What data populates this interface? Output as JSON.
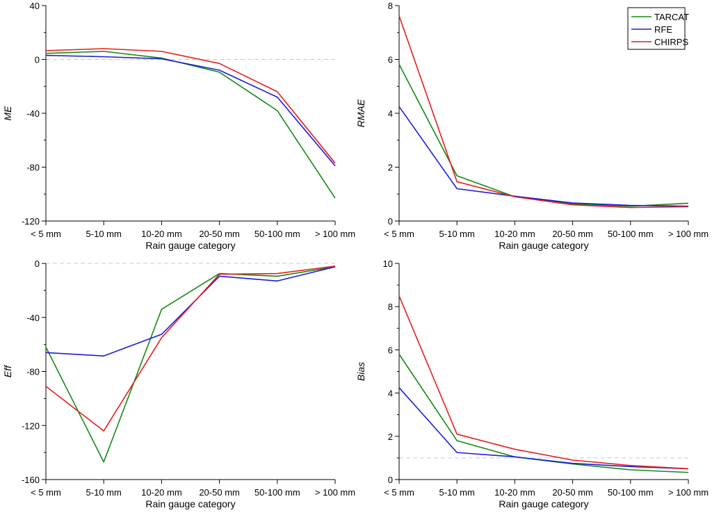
{
  "chart_data": [
    {
      "type": "line",
      "xlabel": "Rain gauge category",
      "ylabel": "ME",
      "categories": [
        "< 5 mm",
        "5-10 mm",
        "10-20 mm",
        "20-50 mm",
        "50-100 mm",
        "> 100 mm"
      ],
      "ylim": [
        -120,
        40
      ],
      "yticks": [
        40,
        0,
        -40,
        -80,
        -120
      ],
      "yticks_display": [
        "40",
        "0",
        "-40",
        "-80",
        "-120"
      ],
      "reference_line": 0,
      "series": [
        {
          "name": "TARCAT",
          "color": "#138a13",
          "values": [
            4.5,
            6,
            1,
            -9.5,
            -38,
            -103
          ]
        },
        {
          "name": "RFE",
          "color": "#1b1bde",
          "values": [
            3,
            2,
            0.5,
            -8,
            -28,
            -79
          ]
        },
        {
          "name": "CHIRPS",
          "color": "#e81c1c",
          "values": [
            6.5,
            8,
            6,
            -3,
            -24,
            -77
          ]
        }
      ]
    },
    {
      "type": "line",
      "xlabel": "Rain gauge category",
      "ylabel": "RMAE",
      "categories": [
        "< 5 mm",
        "5-10 mm",
        "10-20 mm",
        "20-50 mm",
        "50-100 mm",
        "> 100 mm"
      ],
      "ylim": [
        0,
        8
      ],
      "yticks": [
        8,
        6,
        4,
        2,
        0
      ],
      "yticks_display": [
        "8",
        "6",
        "4",
        "2",
        "0"
      ],
      "reference_line": 0,
      "legend": {
        "position": "top-right",
        "entries": [
          "TARCAT",
          "RFE",
          "CHIRPS"
        ]
      },
      "series": [
        {
          "name": "TARCAT",
          "color": "#138a13",
          "values": [
            5.82,
            1.68,
            0.9,
            0.63,
            0.55,
            0.66
          ]
        },
        {
          "name": "RFE",
          "color": "#1b1bde",
          "values": [
            4.25,
            1.2,
            0.92,
            0.67,
            0.58,
            0.55
          ]
        },
        {
          "name": "CHIRPS",
          "color": "#e81c1c",
          "values": [
            7.62,
            1.46,
            0.9,
            0.6,
            0.5,
            0.53
          ]
        }
      ]
    },
    {
      "type": "line",
      "xlabel": "Rain gauge category",
      "ylabel": "Eff",
      "categories": [
        "< 5 mm",
        "5-10 mm",
        "10-20 mm",
        "20-50 mm",
        "50-100 mm",
        "> 100 mm"
      ],
      "ylim": [
        -160,
        0
      ],
      "yticks": [
        0,
        -40,
        -80,
        -120,
        -160
      ],
      "yticks_display": [
        "0",
        "-40",
        "-80",
        "-120",
        "-160"
      ],
      "reference_line": 0,
      "series": [
        {
          "name": "TARCAT",
          "color": "#138a13",
          "values": [
            -62,
            -147,
            -34,
            -7.5,
            -9.5,
            -2.5
          ]
        },
        {
          "name": "RFE",
          "color": "#1b1bde",
          "values": [
            -66,
            -68.5,
            -52.5,
            -9.5,
            -13,
            -2.5
          ]
        },
        {
          "name": "CHIRPS",
          "color": "#e81c1c",
          "values": [
            -91,
            -124,
            -55,
            -8,
            -7.5,
            -2
          ]
        }
      ]
    },
    {
      "type": "line",
      "xlabel": "Rain gauge category",
      "ylabel": "Bias",
      "categories": [
        "< 5 mm",
        "5-10 mm",
        "10-20 mm",
        "20-50 mm",
        "50-100 mm",
        "> 100 mm"
      ],
      "ylim": [
        0,
        10
      ],
      "yticks": [
        10,
        8,
        6,
        4,
        2,
        0
      ],
      "yticks_display": [
        "10",
        "8",
        "6",
        "4",
        "2",
        "0"
      ],
      "reference_line": 1,
      "series": [
        {
          "name": "TARCAT",
          "color": "#138a13",
          "values": [
            5.8,
            1.8,
            1.05,
            0.72,
            0.45,
            0.33
          ]
        },
        {
          "name": "RFE",
          "color": "#1b1bde",
          "values": [
            4.25,
            1.25,
            1.05,
            0.75,
            0.6,
            0.5
          ]
        },
        {
          "name": "CHIRPS",
          "color": "#e81c1c",
          "values": [
            8.5,
            2.1,
            1.4,
            0.9,
            0.65,
            0.5
          ]
        }
      ]
    }
  ]
}
